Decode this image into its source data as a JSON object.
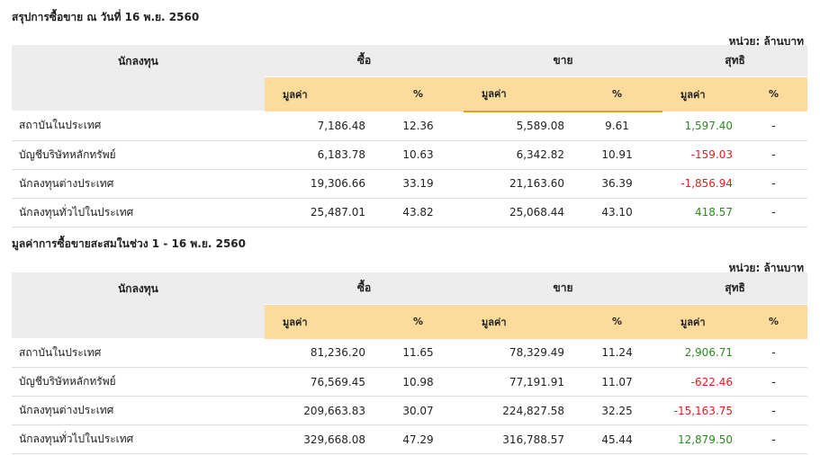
{
  "section1": {
    "title": "สรุปการซื้อขาย ณ วันที่ 16 พ.ย. 2560",
    "unit": "หน่วย: ล้านบาท",
    "headers": {
      "investor": "นักลงทุน",
      "buy": "ซื้อ",
      "sell": "ขาย",
      "net": "สุทธิ",
      "value": "มูลค่า",
      "pct": "%"
    },
    "rows": [
      {
        "name": "สถาบันในประเทศ",
        "buy_value": "7,186.48",
        "buy_pct": "12.36",
        "sell_value": "5,589.08",
        "sell_pct": "9.61",
        "net_value": "1,597.40",
        "net_pct": "-",
        "net_sign": "pos"
      },
      {
        "name": "บัญชีบริษัทหลักทรัพย์",
        "buy_value": "6,183.78",
        "buy_pct": "10.63",
        "sell_value": "6,342.82",
        "sell_pct": "10.91",
        "net_value": "-159.03",
        "net_pct": "-",
        "net_sign": "neg"
      },
      {
        "name": "นักลงทุนต่างประเทศ",
        "buy_value": "19,306.66",
        "buy_pct": "33.19",
        "sell_value": "21,163.60",
        "sell_pct": "36.39",
        "net_value": "-1,856.94",
        "net_pct": "-",
        "net_sign": "neg"
      },
      {
        "name": "นักลงทุนทั่วไปในประเทศ",
        "buy_value": "25,487.01",
        "buy_pct": "43.82",
        "sell_value": "25,068.44",
        "sell_pct": "43.10",
        "net_value": "418.57",
        "net_pct": "-",
        "net_sign": "pos"
      }
    ]
  },
  "section2": {
    "title": "มูลค่าการซื้อขายสะสมในช่วง 1 - 16 พ.ย. 2560",
    "unit": "หน่วย: ล้านบาท",
    "headers": {
      "investor": "นักลงทุน",
      "buy": "ซื้อ",
      "sell": "ขาย",
      "net": "สุทธิ",
      "value": "มูลค่า",
      "pct": "%"
    },
    "rows": [
      {
        "name": "สถาบันในประเทศ",
        "buy_value": "81,236.20",
        "buy_pct": "11.65",
        "sell_value": "78,329.49",
        "sell_pct": "11.24",
        "net_value": "2,906.71",
        "net_pct": "-",
        "net_sign": "pos"
      },
      {
        "name": "บัญชีบริษัทหลักทรัพย์",
        "buy_value": "76,569.45",
        "buy_pct": "10.98",
        "sell_value": "77,191.91",
        "sell_pct": "11.07",
        "net_value": "-622.46",
        "net_pct": "-",
        "net_sign": "neg"
      },
      {
        "name": "นักลงทุนต่างประเทศ",
        "buy_value": "209,663.83",
        "buy_pct": "30.07",
        "sell_value": "224,827.58",
        "sell_pct": "32.25",
        "net_value": "-15,163.75",
        "net_pct": "-",
        "net_sign": "neg"
      },
      {
        "name": "นักลงทุนทั่วไปในประเทศ",
        "buy_value": "329,668.08",
        "buy_pct": "47.29",
        "sell_value": "316,788.57",
        "sell_pct": "45.44",
        "net_value": "12,879.50",
        "net_pct": "-",
        "net_sign": "pos"
      }
    ]
  },
  "colors": {
    "header_gray": "#ececec",
    "subheader_orange": "#fbdc9c",
    "positive": "#2a8a1f",
    "negative": "#e02020"
  }
}
